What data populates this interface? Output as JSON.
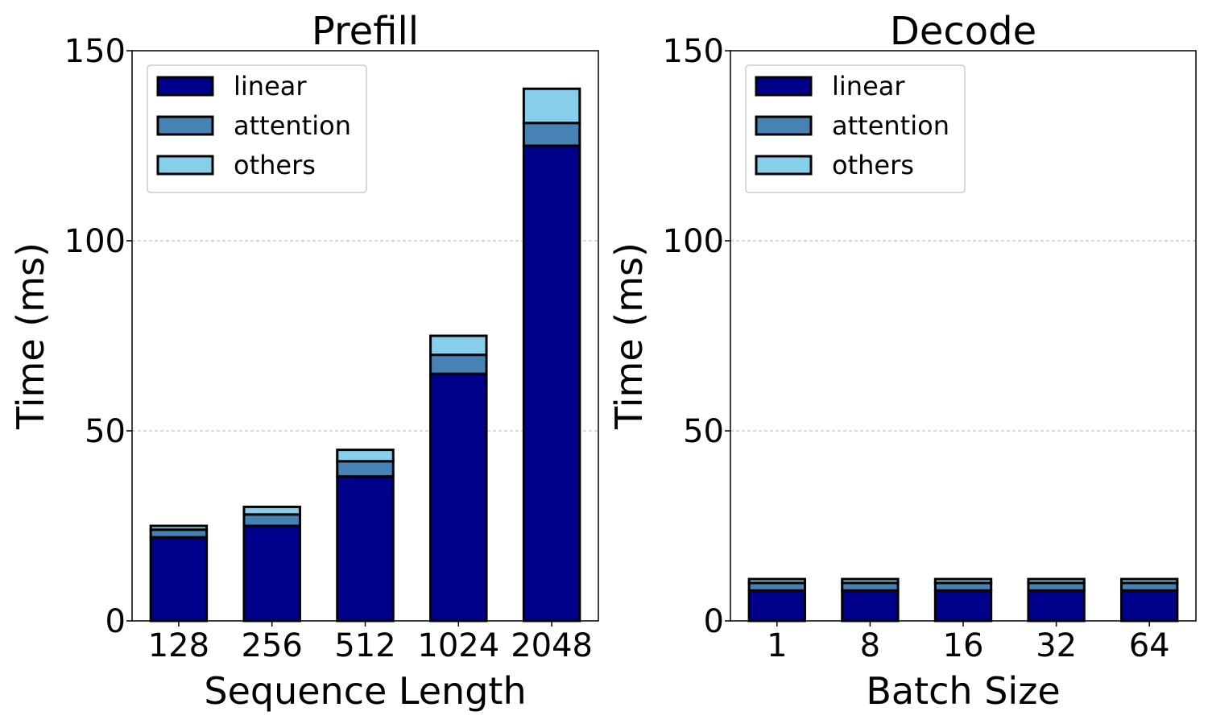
{
  "chart_data": [
    {
      "type": "bar",
      "stacked": true,
      "title": "Prefill",
      "xlabel": "Sequence Length",
      "ylabel": "Time (ms)",
      "categories": [
        "128",
        "256",
        "512",
        "1024",
        "2048"
      ],
      "ylim": [
        0,
        150
      ],
      "yticks": [
        0,
        50,
        100,
        150
      ],
      "grid": "y-dashed",
      "legend_position": "top-left",
      "series": [
        {
          "name": "linear",
          "color": "#00008b",
          "values": [
            22,
            25,
            38,
            65,
            125
          ]
        },
        {
          "name": "attention",
          "color": "#4682b4",
          "values": [
            2,
            3,
            4,
            5,
            6
          ]
        },
        {
          "name": "others",
          "color": "#87ceeb",
          "values": [
            1,
            2,
            3,
            5,
            9
          ]
        }
      ]
    },
    {
      "type": "bar",
      "stacked": true,
      "title": "Decode",
      "xlabel": "Batch Size",
      "ylabel": "Time (ms)",
      "categories": [
        "1",
        "8",
        "16",
        "32",
        "64"
      ],
      "ylim": [
        0,
        150
      ],
      "yticks": [
        0,
        50,
        100,
        150
      ],
      "grid": "y-dashed",
      "legend_position": "top-left",
      "series": [
        {
          "name": "linear",
          "color": "#00008b",
          "values": [
            8,
            8,
            8,
            8,
            8
          ]
        },
        {
          "name": "attention",
          "color": "#4682b4",
          "values": [
            2,
            2,
            2,
            2,
            2
          ]
        },
        {
          "name": "others",
          "color": "#87ceeb",
          "values": [
            1,
            1,
            1,
            1,
            1
          ]
        }
      ]
    }
  ]
}
